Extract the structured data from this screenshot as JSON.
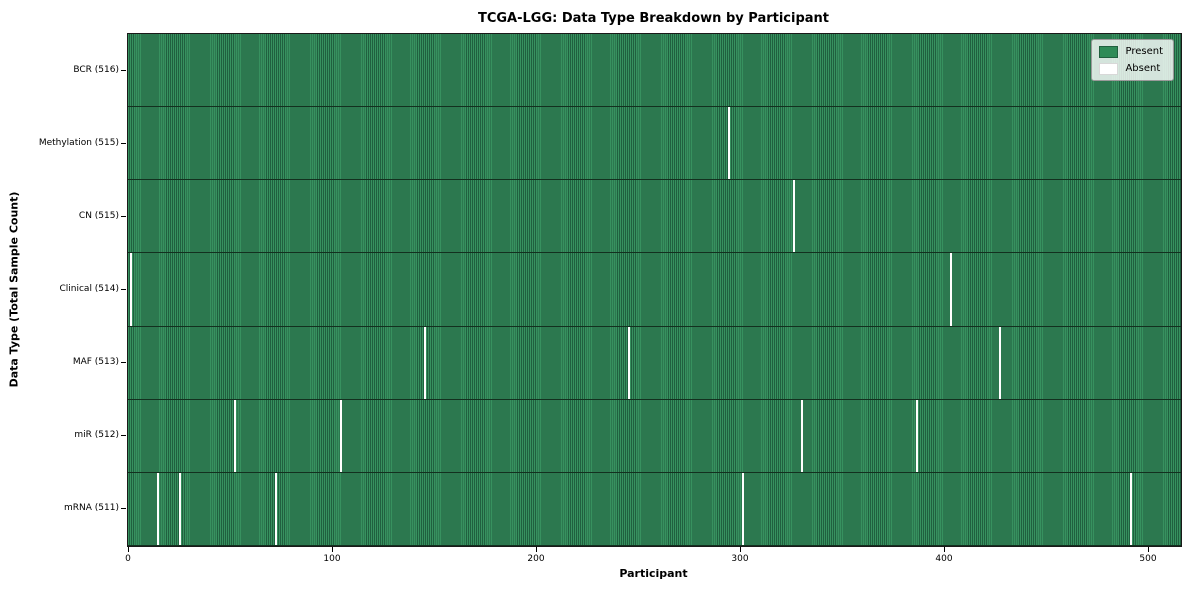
{
  "chart_data": {
    "type": "heatmap",
    "title": "TCGA-LGG: Data Type Breakdown by Participant",
    "xlabel": "Participant",
    "ylabel": "Data Type (Total Sample Count)",
    "total_participants": 516,
    "x_range": [
      0,
      516
    ],
    "x_ticks": [
      0,
      100,
      200,
      300,
      400,
      500
    ],
    "legend": [
      {
        "label": "Present",
        "color": "#2e8b57"
      },
      {
        "label": "Absent",
        "color": "#ffffff"
      }
    ],
    "rows": [
      {
        "label": "BCR (516)",
        "data_type": "BCR",
        "present_count": 516,
        "absent_participants": []
      },
      {
        "label": "Methylation (515)",
        "data_type": "Methylation",
        "present_count": 515,
        "absent_participants": [
          294
        ]
      },
      {
        "label": "CN (515)",
        "data_type": "CN",
        "present_count": 515,
        "absent_participants": [
          326
        ]
      },
      {
        "label": "Clinical (514)",
        "data_type": "Clinical",
        "present_count": 514,
        "absent_participants": [
          1,
          403
        ]
      },
      {
        "label": "MAF (513)",
        "data_type": "MAF",
        "present_count": 513,
        "absent_participants": [
          145,
          245,
          427
        ]
      },
      {
        "label": "miR (512)",
        "data_type": "miR",
        "present_count": 512,
        "absent_participants": [
          52,
          104,
          330,
          386
        ]
      },
      {
        "label": "mRNA (511)",
        "data_type": "mRNA",
        "present_count": 511,
        "absent_participants": [
          14,
          25,
          72,
          301,
          491
        ]
      }
    ],
    "colors": {
      "present_fill": "#37915f",
      "present_edge": "#20603f",
      "absent_fill": "#ffffff",
      "row_separator": "#13301f",
      "spine": "#1a1a1a"
    },
    "legend_position": "upper right",
    "grid": false
  }
}
